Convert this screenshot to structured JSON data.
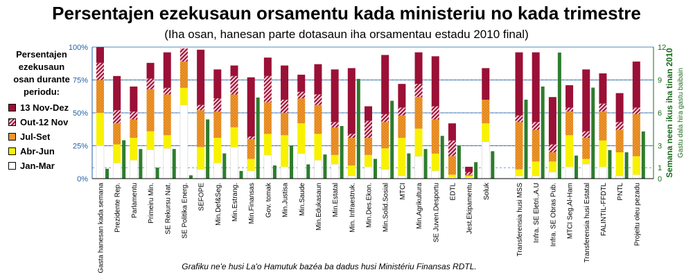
{
  "title": "Persentajen ezekusaun orsamentu kada ministeriu no kada trimestre",
  "subtitle": "(Iha osan, hanesan parte dotasaun iha orsamentau estadu 2010 final)",
  "legend_title": "Persentajen ezekusaun osan durante periodu:",
  "legend": [
    {
      "label": "13 Nov-Dez",
      "color": "#9b1036"
    },
    {
      "label": "Out-12 Nov",
      "color": "#9b1036"
    },
    {
      "label": "Jul-Set",
      "color": "#f0962a"
    },
    {
      "label": "Abr-Jun",
      "color": "#f8f200"
    },
    {
      "label": "Jan-Mar",
      "color": "#ffffff"
    }
  ],
  "footnote": "Grafiku ne'e husi La'o Hamutuk bazéa ba dadus husi Ministériu Finansas RDTL.",
  "chart_data": {
    "type": "bar",
    "categories": [
      "Gasta hanesan kada semana",
      "Prezidente Rep.",
      "Parlamentu",
      "Primeiru Min.",
      "SE Rekursu Nat.",
      "SE Politika Energ.",
      "SEFOPE",
      "Min.Def&Seg.",
      "Min.Estrang.",
      "Min.Finansas",
      "Gov. tomak",
      "Min.Justisa",
      "Min.Saude",
      "Min.Edukasaun",
      "Min.Estatal",
      "Min. Infraestruk.",
      "Min.Des.Ekon.",
      "Min.Solid.Sosial",
      "MTCI",
      "Min.Agrikultura",
      "SE Juven.Desportu",
      "EDTL",
      "Jest.Ekipamentu",
      "Soluk",
      "Transferensia husi MSS",
      "Infra. SE Eletri.,A.U",
      "Infra. SE Obras Pub.",
      "MTCI Seg.Al-Ham",
      "Transferensia husi Estatal",
      "FALINTIL-FFDTL",
      "PNTL",
      "Projeitu oleu pezadu"
    ],
    "gaps_after": [
      23
    ],
    "series": [
      {
        "name": "Jan-Mar",
        "values": [
          25,
          12,
          14,
          22,
          23,
          56,
          7,
          12,
          24,
          6,
          18,
          9,
          19,
          14,
          11,
          2,
          9,
          7,
          2,
          17,
          6,
          1,
          1,
          28,
          2,
          2,
          5,
          9,
          11,
          9,
          2,
          3
        ]
      },
      {
        "name": "Abr-Jun",
        "values": [
          25,
          14,
          17,
          14,
          10,
          13,
          17,
          19,
          15,
          9,
          16,
          24,
          23,
          20,
          7,
          8,
          9,
          16,
          29,
          21,
          13,
          2,
          1,
          14,
          5,
          11,
          8,
          24,
          4,
          20,
          18,
          14
        ]
      },
      {
        "name": "Jul-Set",
        "values": [
          25,
          16,
          14,
          32,
          31,
          20,
          28,
          20,
          25,
          15,
          24,
          17,
          19,
          22,
          21,
          21,
          13,
          20,
          17,
          24,
          26,
          14,
          1,
          18,
          36,
          24,
          7,
          18,
          16,
          22,
          17,
          32
        ]
      },
      {
        "name": "Out-12 Nov",
        "values": [
          13,
          10,
          6,
          8,
          5,
          10,
          4,
          10,
          14,
          2,
          20,
          10,
          5,
          8,
          4,
          3,
          13,
          6,
          6,
          10,
          10,
          12,
          2,
          0,
          5,
          6,
          6,
          3,
          5,
          6,
          6,
          5
        ]
      },
      {
        "name": "13 Nov-Dez",
        "values": [
          12,
          26,
          19,
          12,
          27,
          0,
          42,
          22,
          8,
          45,
          14,
          26,
          13,
          23,
          40,
          50,
          11,
          45,
          18,
          24,
          38,
          13,
          4,
          24,
          48,
          53,
          36,
          17,
          47,
          23,
          22,
          35
        ]
      }
    ],
    "weekly_series": {
      "name": "Semana neen ikus iha tinan 2010",
      "values": [
        0.9,
        3.5,
        2.7,
        1.0,
        2.7,
        0.3,
        5.4,
        2.3,
        0.7,
        7.4,
        1.2,
        3.0,
        1.3,
        2.2,
        4.8,
        9.1,
        1.8,
        7.1,
        2.3,
        2.7,
        3.9,
        3.0,
        1.5,
        2.5,
        7.2,
        8.4,
        11.5,
        2.1,
        8.3,
        2.6,
        2.4,
        4.3
      ]
    },
    "ylim": [
      0,
      100
    ],
    "y_ticks": [
      "0%",
      "25%",
      "50%",
      "75%",
      "100%"
    ],
    "y2lim": [
      0,
      12
    ],
    "y2_ticks": [
      "0",
      "1",
      "3",
      "6",
      "9",
      "12"
    ],
    "y2label": "Semana neen ikus iha tinan 2010",
    "y2label_sub": "Gastu dala hira gastu baibain",
    "grid": true,
    "colors": {
      "q1": "#ffffff",
      "q2": "#f8f200",
      "q3": "#f0962a",
      "q3_dot": "#c56d12",
      "q4a": "#9b1036",
      "q4a_bg": "#f7cfd6",
      "q4b": "#9b1036",
      "weekly": "#2d7d2d",
      "grid": "#1f5fa8",
      "axis_left": "#1f5fa8",
      "axis_right": "#1a6b1a"
    }
  }
}
